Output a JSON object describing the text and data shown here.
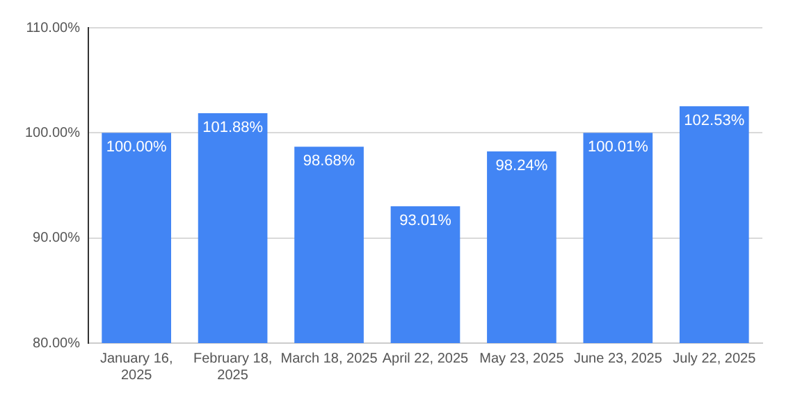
{
  "chart_data": {
    "type": "bar",
    "categories": [
      "January 16, 2025",
      "February 18, 2025",
      "March 18, 2025",
      "April 22, 2025",
      "May 23, 2025",
      "June 23, 2025",
      "July 22, 2025"
    ],
    "values": [
      100.0,
      101.88,
      98.68,
      93.01,
      98.24,
      100.01,
      102.53
    ],
    "value_labels": [
      "100.00%",
      "101.88%",
      "98.68%",
      "93.01%",
      "98.24%",
      "100.01%",
      "102.53%"
    ],
    "color": "#4285f4",
    "ylim": [
      80,
      110
    ],
    "yticks": [
      {
        "value": 80,
        "label": "80.00%"
      },
      {
        "value": 90,
        "label": "90.00%"
      },
      {
        "value": 100,
        "label": "100.00%"
      },
      {
        "value": 110,
        "label": "110.00%"
      }
    ],
    "grid": "y",
    "legend": false
  }
}
